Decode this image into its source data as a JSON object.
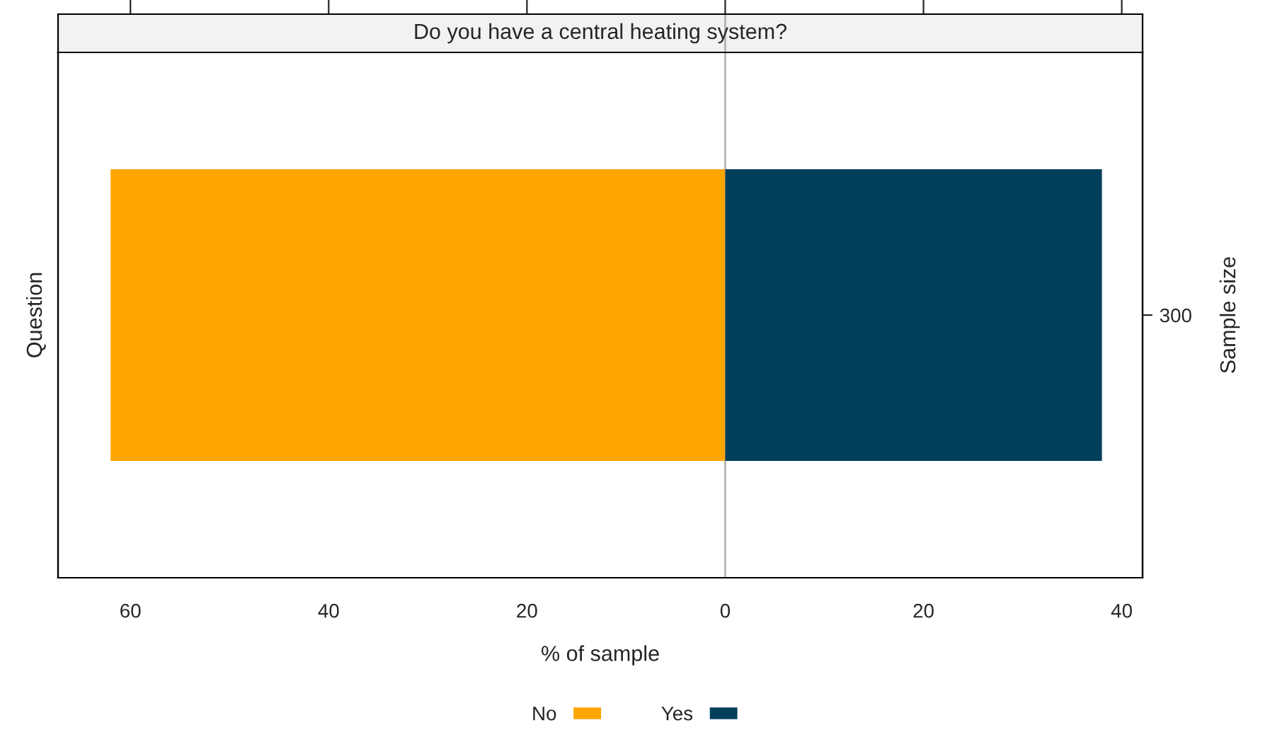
{
  "chart_data": {
    "type": "bar",
    "orientation": "horizontal",
    "stacked": true,
    "title": "Do you have a central heating system?",
    "xlabel": "% of sample",
    "ylabel": "Question",
    "y2label": "Sample size",
    "categories": [
      null
    ],
    "series": [
      {
        "name": "No",
        "color": "#ffa500",
        "values": [
          -62
        ]
      },
      {
        "name": "Yes",
        "color": "#023f5a",
        "values": [
          38
        ]
      }
    ],
    "xlim": [
      -67.3,
      42.1
    ],
    "xticks": [
      {
        "value": -60,
        "label": "60"
      },
      {
        "value": -40,
        "label": "40"
      },
      {
        "value": -20,
        "label": "20"
      },
      0,
      20,
      40
    ],
    "ref_lines": [
      {
        "axis": "x",
        "value": 0,
        "color": "#b3b3b3"
      }
    ],
    "annotations": [
      "300"
    ],
    "tick_labels": "x",
    "legend": "bottom",
    "grid": false
  }
}
